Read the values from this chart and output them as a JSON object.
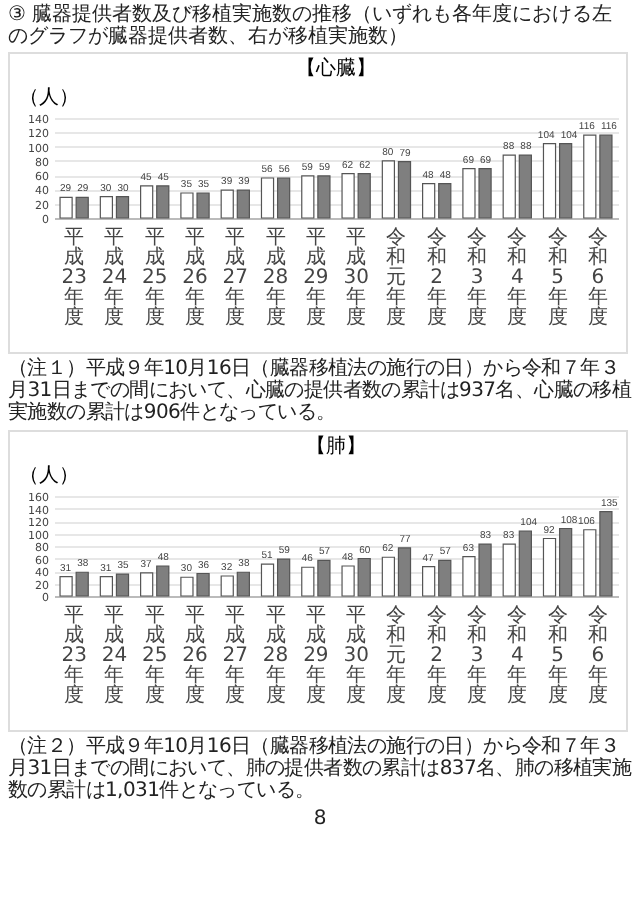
{
  "chart_data": [
    {
      "type": "bar",
      "title": "【心臓】",
      "ylabel": "（人）",
      "annotations": [
        "③ 臓器提供者数及び移植実施数の推移（いずれも各年度における左のグラフが臓器提供者数、右が移植実施数）",
        "（注１）平成９年10月16日（臓器移植法の施行の日）から令和７年３月31日までの間において、心臓の提供者数の累計は937名、心臓の移植実施数の累計は906件となっている。"
      ],
      "categories": [
        "平成23年度",
        "平成24年度",
        "平成25年度",
        "平成26年度",
        "平成27年度",
        "平成28年度",
        "平成29年度",
        "平成30年度",
        "令和元年度",
        "令和2年度",
        "令和3年度",
        "令和4年度",
        "令和5年度",
        "令和6年度"
      ],
      "series": [
        {
          "color": "#ffffff",
          "values": [
            29,
            30,
            45,
            35,
            39,
            56,
            59,
            62,
            80,
            48,
            69,
            88,
            104,
            116
          ]
        },
        {
          "color": "#7f7f7f",
          "values": [
            29,
            30,
            45,
            35,
            39,
            56,
            59,
            62,
            79,
            48,
            69,
            88,
            104,
            116
          ]
        }
      ],
      "ylim": [
        0,
        140
      ],
      "yticks": [
        0,
        20,
        40,
        60,
        80,
        100,
        120,
        140
      ],
      "grid": "y",
      "data_labels": true,
      "legend": false
    },
    {
      "type": "bar",
      "title": "【肺】",
      "ylabel": "（人）",
      "annotations": [
        "（注２）平成９年10月16日（臓器移植法の施行の日）から令和７年３月31日までの間において、肺の提供者数の累計は837名、肺の移植実施数の累計は1,031件となっている。",
        "8"
      ],
      "categories": [
        "平成23年度",
        "平成24年度",
        "平成25年度",
        "平成26年度",
        "平成27年度",
        "平成28年度",
        "平成29年度",
        "平成30年度",
        "令和元年度",
        "令和2年度",
        "令和3年度",
        "令和4年度",
        "令和5年度",
        "令和6年度"
      ],
      "series": [
        {
          "color": "#ffffff",
          "values": [
            31,
            31,
            37,
            30,
            32,
            51,
            46,
            48,
            62,
            47,
            63,
            83,
            92,
            106
          ]
        },
        {
          "color": "#7f7f7f",
          "values": [
            38,
            35,
            48,
            36,
            38,
            59,
            57,
            60,
            77,
            57,
            83,
            104,
            108,
            135
          ]
        }
      ],
      "ylim": [
        0,
        160
      ],
      "yticks": [
        0,
        20,
        40,
        60,
        80,
        100,
        120,
        140,
        160
      ],
      "grid": "y",
      "data_labels": true,
      "legend": false
    }
  ]
}
